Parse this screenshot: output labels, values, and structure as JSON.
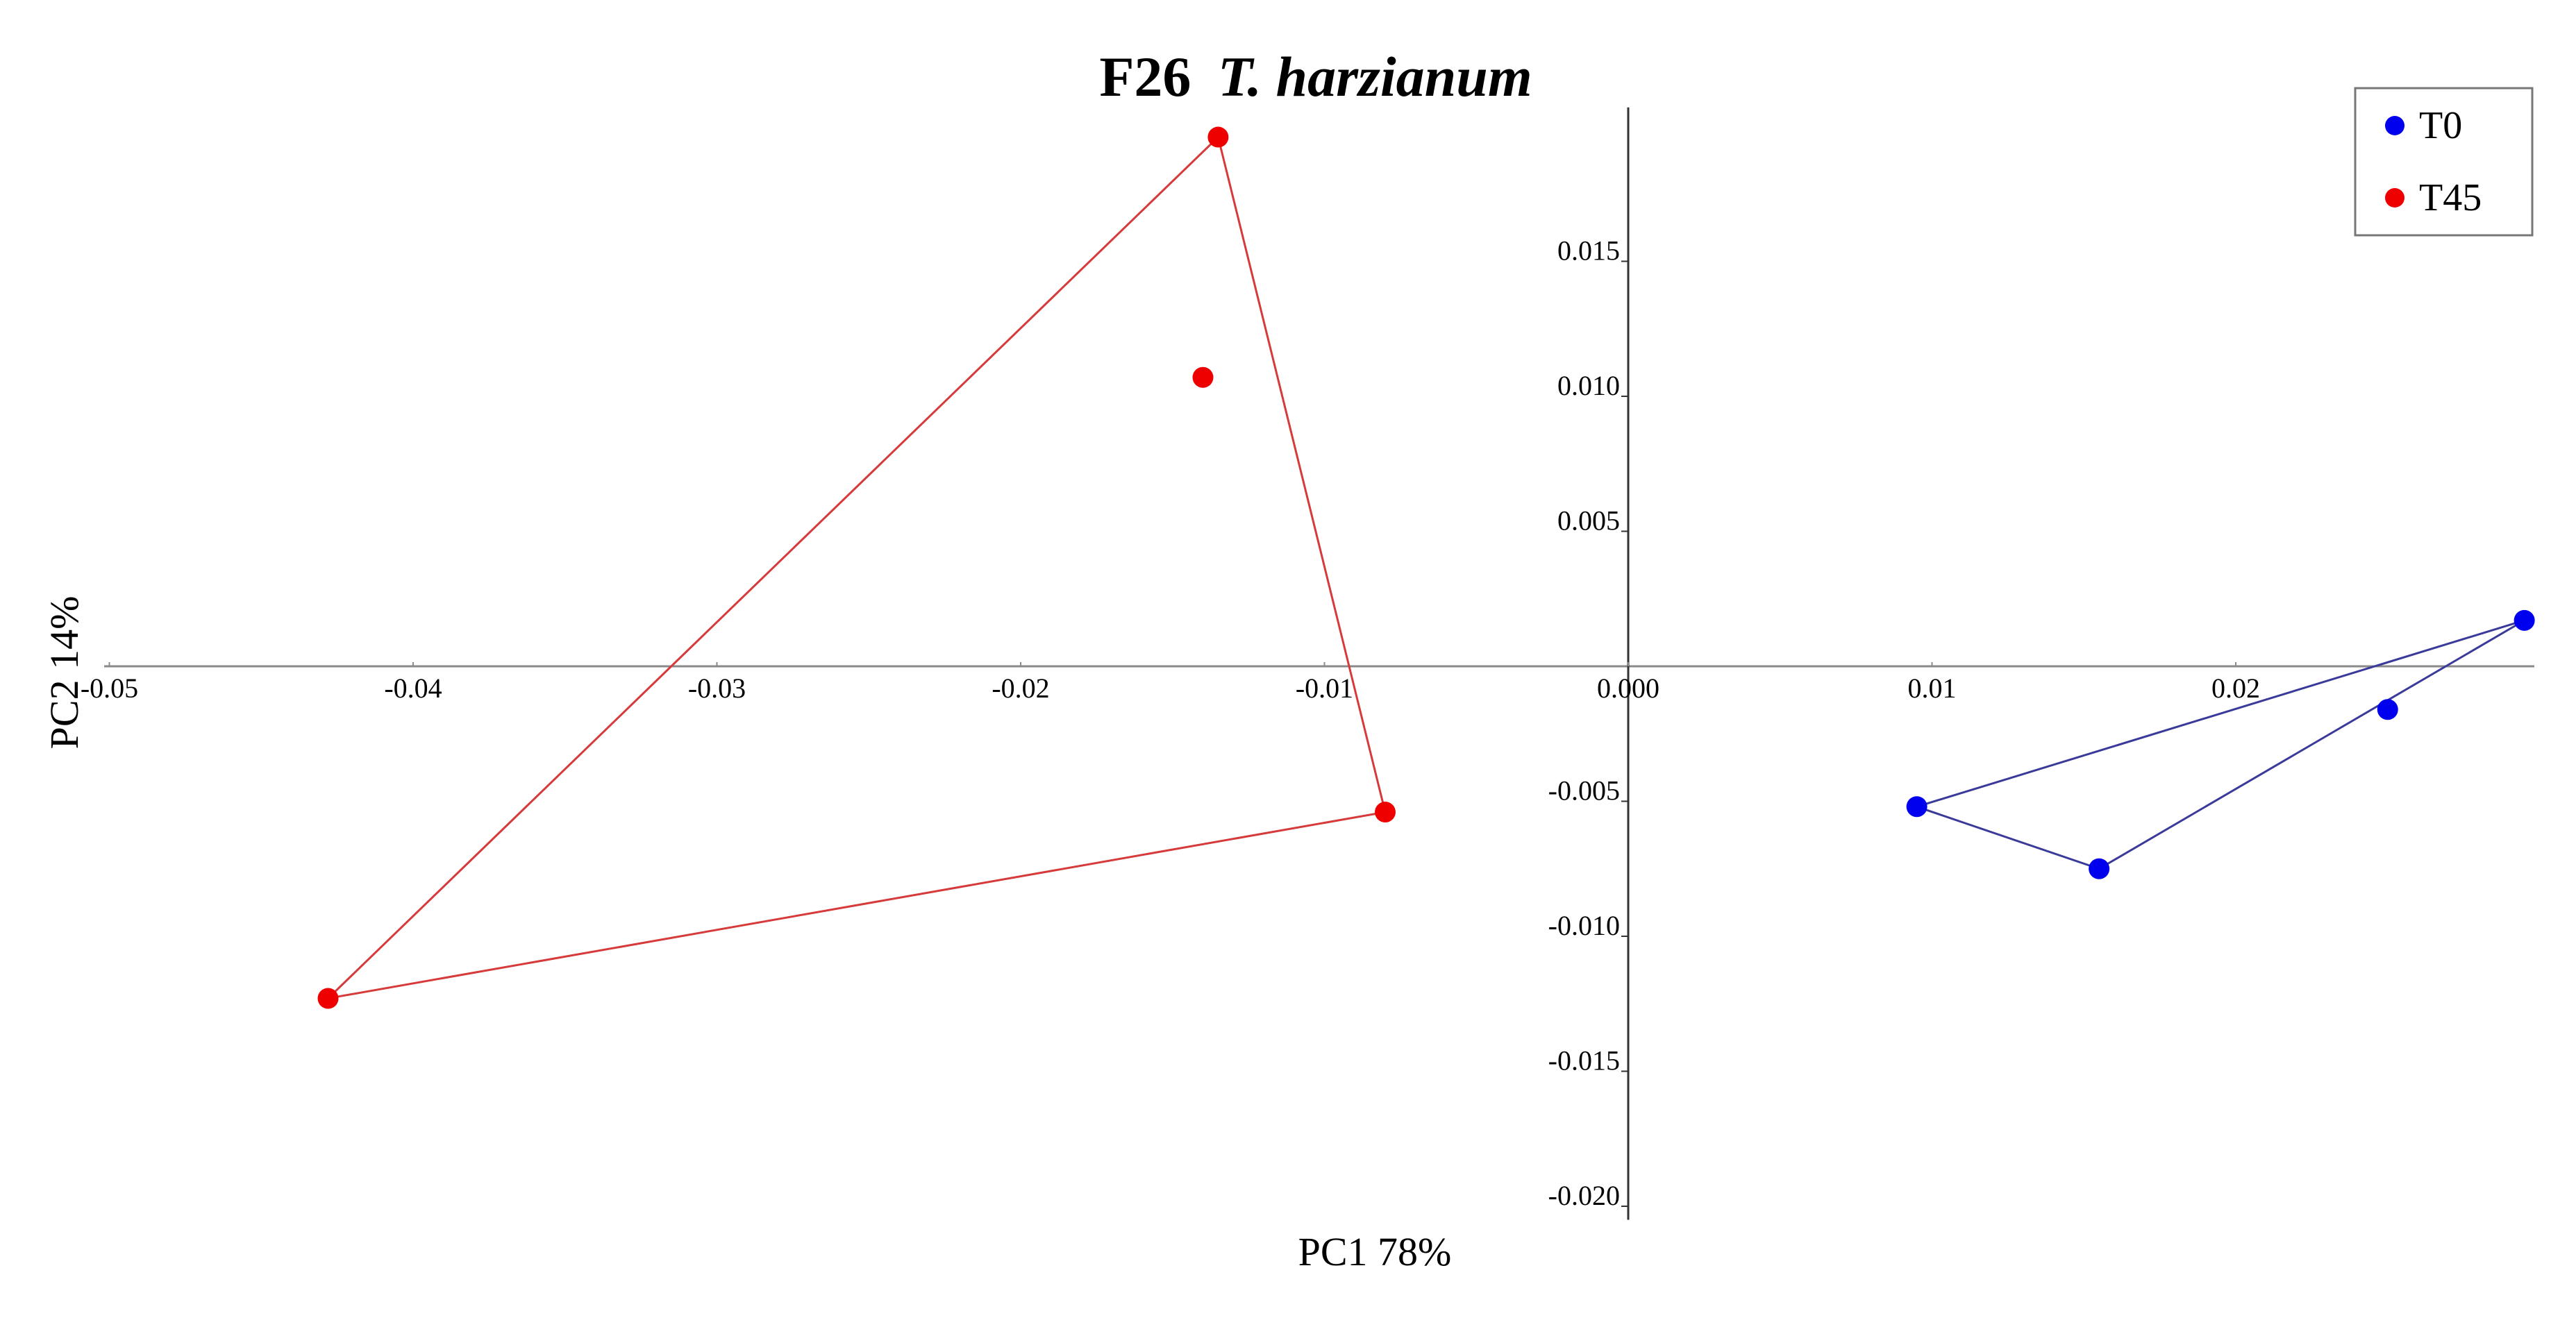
{
  "chart_data": {
    "type": "scatter",
    "title": {
      "prefix": "F26",
      "italic": "T. harzianum"
    },
    "xlabel": "PC1 78%",
    "ylabel": "PC2 14%",
    "xlim": [
      -0.05,
      0.0295
    ],
    "ylim": [
      -0.0205,
      0.0207
    ],
    "x_ticks": [
      {
        "value": -0.05,
        "label": "-0.05"
      },
      {
        "value": -0.04,
        "label": "-0.04"
      },
      {
        "value": -0.03,
        "label": "-0.03"
      },
      {
        "value": -0.02,
        "label": "-0.02"
      },
      {
        "value": -0.01,
        "label": "-0.01"
      },
      {
        "value": 0.0,
        "label": "0.000"
      },
      {
        "value": 0.01,
        "label": "0.01"
      },
      {
        "value": 0.02,
        "label": "0.02"
      }
    ],
    "y_ticks": [
      {
        "value": 0.015,
        "label": "0.015"
      },
      {
        "value": 0.01,
        "label": "0.010"
      },
      {
        "value": 0.005,
        "label": "0.005"
      },
      {
        "value": -0.005,
        "label": "-0.005"
      },
      {
        "value": -0.01,
        "label": "-0.010"
      },
      {
        "value": -0.015,
        "label": "-0.015"
      },
      {
        "value": -0.02,
        "label": "-0.020"
      }
    ],
    "grid": false,
    "legend_position": "top-right",
    "series": [
      {
        "name": "T0",
        "color": "#0000ee",
        "hull_color": "#3a3a9a",
        "points": [
          {
            "x": 0.0095,
            "y": -0.0052
          },
          {
            "x": 0.0155,
            "y": -0.0075
          },
          {
            "x": 0.025,
            "y": -0.0016
          },
          {
            "x": 0.0295,
            "y": 0.0017
          }
        ],
        "hull": [
          {
            "x": 0.0095,
            "y": -0.0052
          },
          {
            "x": 0.0155,
            "y": -0.0075
          },
          {
            "x": 0.0295,
            "y": 0.0017
          }
        ]
      },
      {
        "name": "T45",
        "color": "#ee0000",
        "hull_color": "#d63a3a",
        "points": [
          {
            "x": -0.0135,
            "y": 0.0196
          },
          {
            "x": -0.014,
            "y": 0.0107
          },
          {
            "x": -0.008,
            "y": -0.0054
          },
          {
            "x": -0.0428,
            "y": -0.0123
          }
        ],
        "hull": [
          {
            "x": -0.0135,
            "y": 0.0196
          },
          {
            "x": -0.008,
            "y": -0.0054
          },
          {
            "x": -0.0428,
            "y": -0.0123
          }
        ]
      }
    ]
  }
}
